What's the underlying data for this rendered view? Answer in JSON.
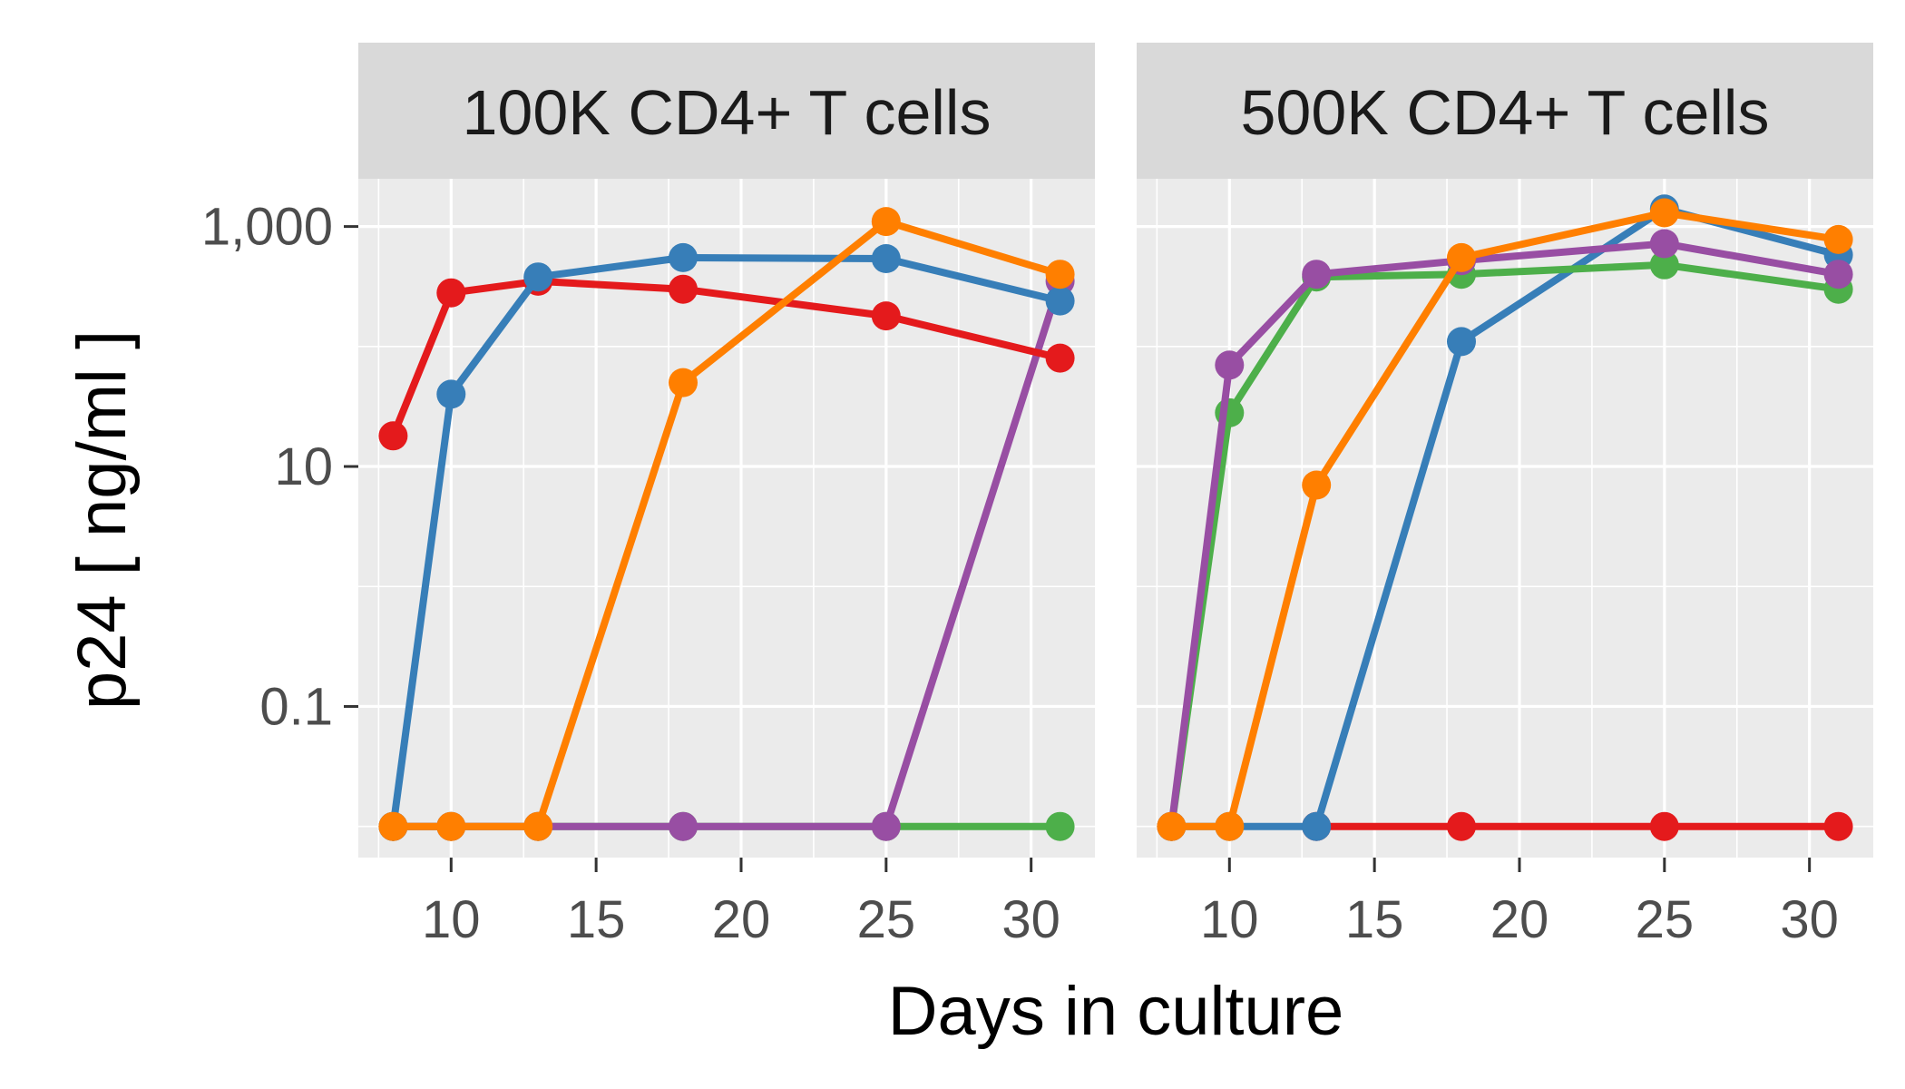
{
  "chart_data": {
    "type": "line",
    "xlabel": "Days in culture",
    "ylabel": "p24 [ ng/ml ]",
    "yscale": "log10",
    "ylim": [
      0.0055,
      2500
    ],
    "xlim": [
      6.8,
      32.2
    ],
    "x_ticks": [
      10,
      15,
      20,
      25,
      30
    ],
    "x_tick_labels": [
      "10",
      "15",
      "20",
      "25",
      "30"
    ],
    "y_ticks": [
      0.1,
      10,
      1000
    ],
    "y_tick_labels": [
      "0.1",
      "10",
      "1,000"
    ],
    "grid": true,
    "series_colors": {
      "red": "#E41A1C",
      "blue": "#377EB8",
      "green": "#4DAF4A",
      "purple": "#984EA3",
      "orange": "#FF7F00"
    },
    "panels": [
      {
        "title": "100K CD4+ T cells",
        "series": [
          {
            "color": "green",
            "x": [
              8,
              10,
              13,
              18,
              25,
              31
            ],
            "y": [
              0.01,
              0.01,
              0.01,
              0.01,
              0.01,
              0.01
            ]
          },
          {
            "color": "purple",
            "x": [
              8,
              10,
              13,
              18,
              25,
              31
            ],
            "y": [
              0.01,
              0.01,
              0.01,
              0.01,
              0.01,
              350
            ]
          },
          {
            "color": "red",
            "x": [
              8,
              10,
              13,
              18,
              25,
              31
            ],
            "y": [
              18,
              280,
              350,
              300,
              180,
              80
            ]
          },
          {
            "color": "blue",
            "x": [
              8,
              10,
              13,
              18,
              25,
              31
            ],
            "y": [
              0.01,
              40,
              380,
              550,
              540,
              240
            ]
          },
          {
            "color": "orange",
            "x": [
              8,
              10,
              13,
              18,
              25,
              31
            ],
            "y": [
              0.01,
              0.01,
              0.01,
              50,
              1100,
              400
            ]
          }
        ]
      },
      {
        "title": "500K CD4+ T cells",
        "series": [
          {
            "color": "red",
            "x": [
              13,
              18,
              25,
              31
            ],
            "y": [
              0.01,
              0.01,
              0.01,
              0.01
            ]
          },
          {
            "color": "blue",
            "x": [
              8,
              10,
              13,
              18,
              25,
              31
            ],
            "y": [
              0.01,
              0.01,
              0.01,
              110,
              1400,
              580
            ]
          },
          {
            "color": "green",
            "x": [
              8,
              10,
              13,
              18,
              25,
              31
            ],
            "y": [
              0.01,
              28,
              380,
              400,
              480,
              300
            ]
          },
          {
            "color": "purple",
            "x": [
              8,
              10,
              13,
              18,
              25,
              31
            ],
            "y": [
              0.01,
              70,
              400,
              520,
              720,
              400
            ]
          },
          {
            "color": "orange",
            "x": [
              8,
              10,
              13,
              18,
              25,
              31
            ],
            "y": [
              0.01,
              0.01,
              7,
              550,
              1300,
              780
            ]
          }
        ]
      }
    ]
  }
}
